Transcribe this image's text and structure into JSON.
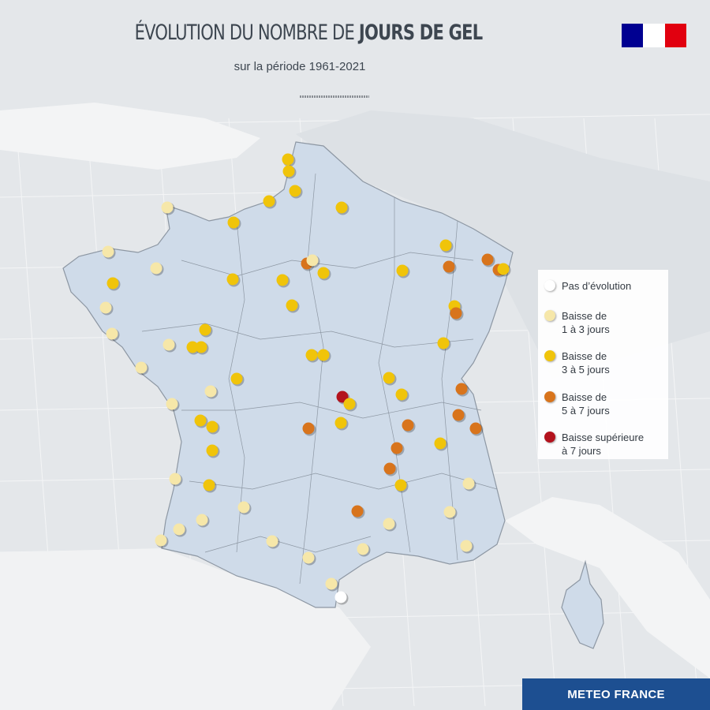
{
  "header": {
    "title_light": "ÉVOLUTION DU NOMBRE DE ",
    "title_bold": "JOURS DE GEL",
    "subtitle": "sur la période 1961-2021"
  },
  "logo": {
    "name": "Marianne République française",
    "colors": [
      "#000091",
      "#ffffff",
      "#e1000f"
    ]
  },
  "legend": {
    "items": [
      {
        "key": "none",
        "label": "Pas d’évolution",
        "color": "#ffffff"
      },
      {
        "key": "1-3",
        "label": "Baisse de\n1 à 3 jours",
        "color": "#f6e7a9"
      },
      {
        "key": "3-5",
        "label": "Baisse de\n3 à 5 jours",
        "color": "#f0c40a"
      },
      {
        "key": "5-7",
        "label": "Baisse de\n5 à 7 jours",
        "color": "#d8741c"
      },
      {
        "key": "7+",
        "label": "Baisse supérieure\nà 7 jours",
        "color": "#b3121d"
      }
    ]
  },
  "stations": [
    "3-5",
    "3-5",
    "3-5",
    "3-5",
    "3-5",
    "1-3",
    "3-5",
    "1-3",
    "1-3",
    "3-5",
    "3-5",
    "3-5",
    "5-7",
    "1-3",
    "3-5",
    "3-5",
    "3-5",
    "3-5",
    "5-7",
    "5-7",
    "5-7",
    "3-5",
    "3-5",
    "5-7",
    "1-3",
    "1-3",
    "3-5",
    "1-3",
    "3-5",
    "3-5",
    "1-3",
    "3-5",
    "3-5",
    "3-5",
    "3-5",
    "3-5",
    "3-5",
    "1-3",
    "1-3",
    "7+",
    "3-5",
    "5-7",
    "3-5",
    "3-5",
    "3-5",
    "5-7",
    "5-7",
    "5-7",
    "5-7",
    "3-5",
    "5-7",
    "5-7",
    "3-5",
    "1-3",
    "3-5",
    "1-3",
    "3-5",
    "1-3",
    "5-7",
    "1-3",
    "1-3",
    "1-3",
    "1-3",
    "1-3",
    "1-3",
    "1-3",
    "1-3",
    "1-3",
    "1-3",
    "none"
  ],
  "map": {
    "land_color": "#cfdbe9",
    "border_color": "#7d8794"
  },
  "footer": {
    "brand": "METEO FRANCE"
  }
}
